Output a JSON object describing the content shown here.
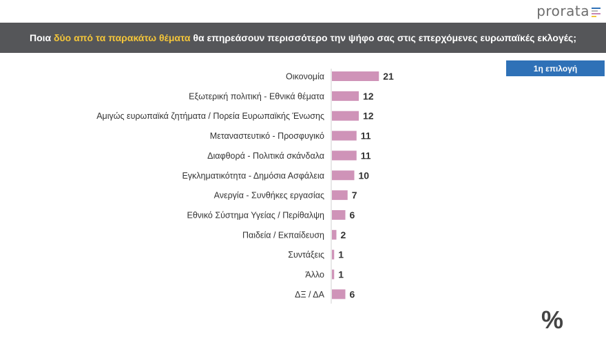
{
  "logo": {
    "text": "prorata",
    "mark_colors": [
      "#2f71b7",
      "#b7b7b7",
      "#c586b3",
      "#f3c53a"
    ]
  },
  "header": {
    "pre": "Ποια ",
    "highlight": "δύο από τα παρακάτω θέματα",
    "post": " θα επηρεάσουν περισσότερο την ψήφο σας στις επερχόμενες ευρωπαϊκές εκλογές;"
  },
  "badge": {
    "label": "1η επιλογή"
  },
  "footer": {
    "symbol": "%"
  },
  "colors": {
    "bar": "#cf93b8",
    "header_bg": "#555659",
    "highlight": "#f3c53a",
    "badge_bg": "#2f71b7"
  },
  "chart_data": {
    "type": "bar",
    "orientation": "horizontal",
    "categories": [
      "Οικονομία",
      "Εξωτερική πολιτική - Εθνικά θέματα",
      "Αμιγώς ευρωπαϊκά ζητήματα / Πορεία Ευρωπαϊκής Ένωσης",
      "Μεταναστευτικό - Προσφυγικό",
      "Διαφθορά - Πολιτικά σκάνδαλα",
      "Εγκληματικότητα - Δημόσια Ασφάλεια",
      "Ανεργία - Συνθήκες εργασίας",
      "Εθνικό Σύστημα Υγείας / Περίθαλψη",
      "Παιδεία / Εκπαίδευση",
      "Συντάξεις",
      "Άλλο",
      "ΔΞ / ΔΑ"
    ],
    "values": [
      21,
      12,
      12,
      11,
      11,
      10,
      7,
      6,
      2,
      1,
      1,
      6
    ],
    "data_labels": true,
    "grid": false,
    "legend": "none"
  }
}
